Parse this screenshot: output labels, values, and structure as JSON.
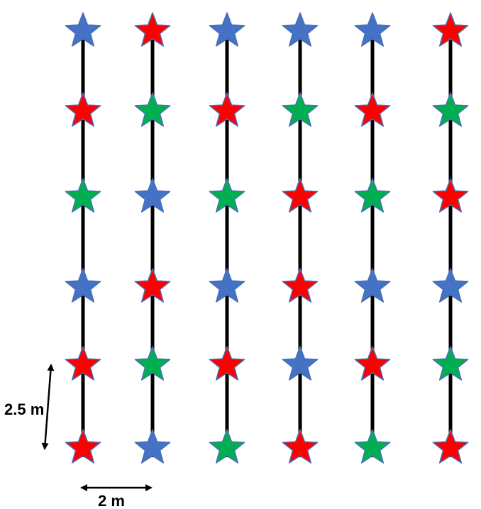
{
  "colors": {
    "blue": "#4472C4",
    "red": "#FF0000",
    "green": "#00B050",
    "outline": "#4A6FB5",
    "line": "#000000"
  },
  "grid": {
    "columns": 6,
    "rows": 6,
    "row_spacing_label": "2.5 m",
    "column_spacing_label": "2 m",
    "star_colors_by_row_top_to_bottom": [
      [
        "blue",
        "red",
        "blue",
        "blue",
        "blue",
        "red"
      ],
      [
        "red",
        "green",
        "red",
        "green",
        "red",
        "green"
      ],
      [
        "green",
        "blue",
        "green",
        "red",
        "green",
        "red"
      ],
      [
        "blue",
        "red",
        "blue",
        "red",
        "blue",
        "blue"
      ],
      [
        "red",
        "green",
        "red",
        "blue",
        "red",
        "green"
      ],
      [
        "red",
        "blue",
        "green",
        "red",
        "green",
        "red"
      ]
    ]
  }
}
